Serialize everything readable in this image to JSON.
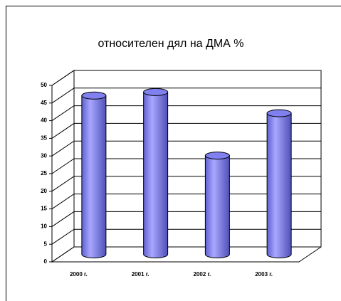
{
  "chart_data": {
    "type": "bar",
    "title": "относителен дял на ДМА %",
    "categories": [
      "2000 г.",
      "2001 г.",
      "2002 г.",
      "2003 г."
    ],
    "values": [
      45,
      46,
      28,
      40
    ],
    "color": "#8080f0",
    "ylim": [
      0,
      50
    ],
    "yticks": [
      0,
      5,
      10,
      15,
      20,
      25,
      30,
      35,
      40,
      45,
      50
    ],
    "grid": true
  }
}
